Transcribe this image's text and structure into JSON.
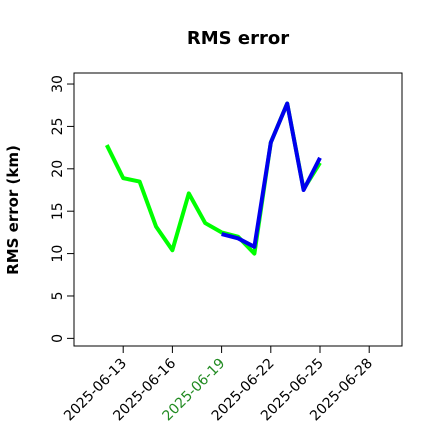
{
  "chart_data": {
    "type": "line",
    "title": "RMS error",
    "y_label": "RMS error (km)",
    "series": [
      {
        "color": "#00ff00",
        "x": [
          "2025-06-12",
          "2025-06-13",
          "2025-06-14",
          "2025-06-15",
          "2025-06-16",
          "2025-06-17",
          "2025-06-18",
          "2025-06-19",
          "2025-06-20",
          "2025-06-21",
          "2025-06-22",
          "2025-06-23",
          "2025-06-24",
          "2025-06-25"
        ],
        "values": [
          22.8,
          18.9,
          18.5,
          13.2,
          10.4,
          17.1,
          13.6,
          12.5,
          12.0,
          10.0,
          23.1,
          27.7,
          17.6,
          20.7
        ]
      },
      {
        "color": "#0000ee",
        "x": [
          "2025-06-19",
          "2025-06-20",
          "2025-06-21",
          "2025-06-22",
          "2025-06-23",
          "2025-06-24",
          "2025-06-25"
        ],
        "values": [
          12.3,
          11.8,
          10.8,
          23.1,
          27.7,
          17.5,
          21.3
        ]
      }
    ],
    "xlim": [
      "2025-06-10",
      "2025-06-30"
    ],
    "xticks": [
      "2025-06-13",
      "2025-06-16",
      "2025-06-19",
      "2025-06-22",
      "2025-06-25",
      "2025-06-28"
    ],
    "xtick_label_colors": [
      "#000000",
      "#000000",
      "#228b22",
      "#000000",
      "#000000",
      "#000000"
    ],
    "ylim": [
      -0.9,
      31.3
    ],
    "yticks": [
      0,
      5,
      10,
      15,
      20,
      25,
      30
    ]
  }
}
